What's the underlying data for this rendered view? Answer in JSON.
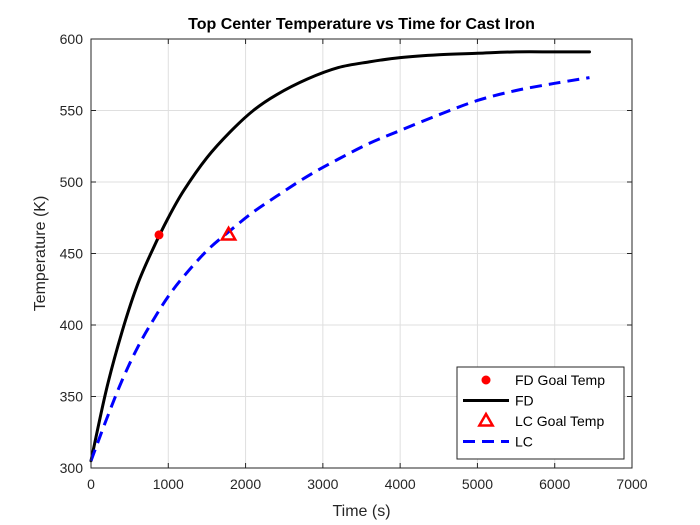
{
  "chart_data": {
    "type": "line",
    "title": "Top Center Temperature vs Time for Cast Iron",
    "xlabel": "Time (s)",
    "ylabel": "Temperature (K)",
    "xlim": [
      0,
      7000
    ],
    "ylim": [
      300,
      600
    ],
    "xticks": [
      0,
      1000,
      2000,
      3000,
      4000,
      5000,
      6000,
      7000
    ],
    "yticks": [
      300,
      350,
      400,
      450,
      500,
      550,
      600
    ],
    "grid": true,
    "legend_position": "bottom-right",
    "series": [
      {
        "name": "FD Goal Temp",
        "style": "marker",
        "marker": "circle",
        "color": "#ff0000",
        "x": [
          880
        ],
        "y": [
          463
        ]
      },
      {
        "name": "FD",
        "style": "solid",
        "color": "#000000",
        "x": [
          0,
          200,
          400,
          600,
          800,
          1000,
          1200,
          1500,
          1800,
          2100,
          2400,
          2800,
          3200,
          3600,
          4000,
          4500,
          5000,
          5500,
          6000,
          6450
        ],
        "y": [
          305,
          355,
          395,
          428,
          453,
          475,
          494,
          517,
          535,
          550,
          561,
          572,
          580,
          584,
          587,
          589,
          590,
          591,
          591,
          591
        ]
      },
      {
        "name": "LC Goal Temp",
        "style": "marker",
        "marker": "triangle",
        "color": "#ff0000",
        "x": [
          1780
        ],
        "y": [
          463
        ]
      },
      {
        "name": "LC",
        "style": "dashed",
        "color": "#0000ff",
        "x": [
          0,
          200,
          400,
          600,
          800,
          1000,
          1200,
          1500,
          1800,
          2100,
          2400,
          2800,
          3200,
          3600,
          4000,
          4500,
          5000,
          5500,
          6000,
          6450
        ],
        "y": [
          305,
          334,
          361,
          384,
          403,
          420,
          434,
          452,
          466,
          479,
          490,
          504,
          516,
          527,
          536,
          547,
          557,
          564,
          569,
          573
        ]
      }
    ]
  }
}
